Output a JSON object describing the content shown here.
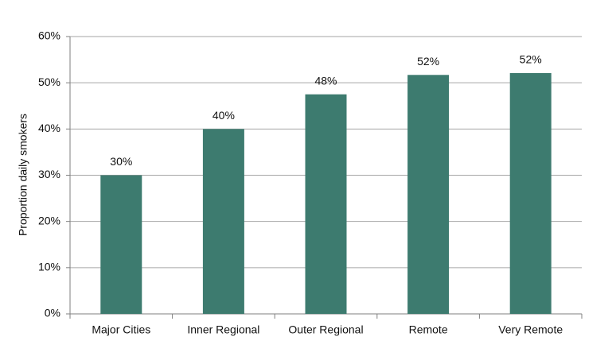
{
  "chart_data": {
    "type": "bar",
    "y_label": "Proportion daily smokers",
    "categories": [
      "Major Cities",
      "Inner Regional",
      "Outer Regional",
      "Remote",
      "Very Remote"
    ],
    "values": [
      30,
      40,
      47.5,
      51.7,
      52.1
    ],
    "value_labels": [
      "30%",
      "40%",
      "48%",
      "52%",
      "52%"
    ],
    "color": "#3d7b6f",
    "ylim": [
      0,
      60
    ],
    "yticks": [
      {
        "value": 0,
        "label": "0%"
      },
      {
        "value": 10,
        "label": "10%"
      },
      {
        "value": 20,
        "label": "20%"
      },
      {
        "value": 30,
        "label": "30%"
      },
      {
        "value": 40,
        "label": "40%"
      },
      {
        "value": 50,
        "label": "50%"
      },
      {
        "value": 60,
        "label": "60%"
      }
    ],
    "grid": true
  }
}
